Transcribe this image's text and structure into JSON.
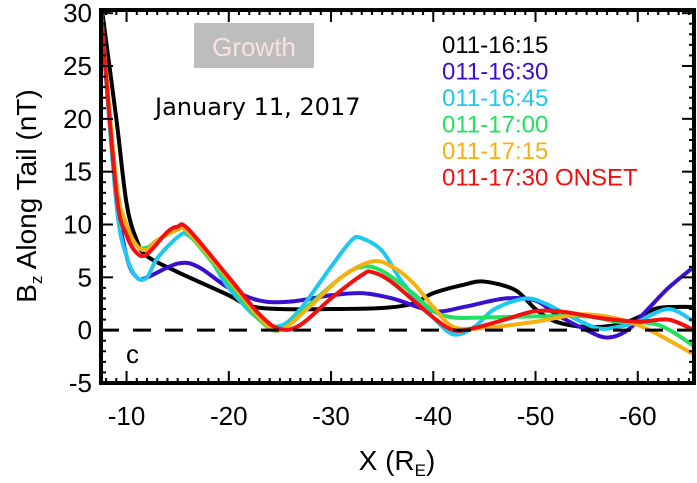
{
  "chart_data": {
    "type": "line",
    "title": "",
    "xlabel": {
      "main": "X (R",
      "sub": "E",
      "end": ")"
    },
    "ylabel": {
      "pre": "B",
      "sub": "z",
      "main": " Along Tail (nT)"
    },
    "xlim": [
      -7.5,
      -65.5
    ],
    "ylim": [
      -5,
      30.3
    ],
    "xticks": [
      -10,
      -20,
      -30,
      -40,
      -50,
      -60
    ],
    "yticks": [
      -5,
      0,
      5,
      10,
      15,
      20,
      25,
      30
    ],
    "reference_line": {
      "y": 0,
      "style": "dashed"
    },
    "annotations": {
      "phase": "Growth",
      "date": "January 11, 2017",
      "panel": "c"
    },
    "legend_placement": "top-right",
    "series": [
      {
        "name": "011-16:15",
        "color": "#000000",
        "x": [
          -7.5,
          -9,
          -10,
          -11,
          -12,
          -15,
          -20,
          -22,
          -25,
          -30,
          -35,
          -38,
          -40,
          -43,
          -45,
          -48,
          -50,
          -52,
          -55,
          -58,
          -60,
          -62,
          -65.5
        ],
        "y": [
          31,
          20,
          12,
          8.5,
          7,
          5.5,
          3.3,
          2.3,
          2,
          2,
          2.1,
          2.5,
          3.5,
          4.3,
          4.6,
          3.8,
          2,
          0.8,
          0.3,
          0.5,
          1.2,
          2.1,
          2.2
        ]
      },
      {
        "name": "011-16:30",
        "color": "#3a10d0",
        "x": [
          -7.5,
          -9,
          -10,
          -11,
          -12,
          -15,
          -17,
          -20,
          -23,
          -26,
          -30,
          -33,
          -36,
          -40,
          -43,
          -47,
          -50,
          -52,
          -55,
          -57,
          -59,
          -61,
          -63,
          -65.5
        ],
        "y": [
          30,
          13,
          7,
          5,
          5,
          6.3,
          6,
          4,
          2.8,
          2.7,
          3.3,
          3.5,
          3,
          1.8,
          2.2,
          3,
          2.8,
          1.5,
          0,
          -0.7,
          0,
          2,
          4,
          6
        ]
      },
      {
        "name": "011-16:45",
        "color": "#1ec8f0",
        "x": [
          -7.5,
          -9,
          -10,
          -11,
          -12,
          -13,
          -15,
          -16,
          -18,
          -20,
          -23,
          -25,
          -27,
          -30,
          -32,
          -33,
          -35,
          -37,
          -40,
          -42,
          -44,
          -46,
          -49,
          -51,
          -53,
          -56,
          -58,
          -60,
          -63,
          -65.5
        ],
        "y": [
          30,
          12,
          7,
          5,
          5,
          6.8,
          8.8,
          9,
          7,
          4,
          1,
          0.4,
          2,
          6,
          8.5,
          8.7,
          7.5,
          4.5,
          1.2,
          -0.4,
          0.3,
          2,
          3,
          2.5,
          1.5,
          0.2,
          0.3,
          0.8,
          2,
          0.8
        ]
      },
      {
        "name": "011-17:00",
        "color": "#22e060",
        "x": [
          -7.5,
          -9,
          -10,
          -11,
          -12,
          -13,
          -15,
          -16,
          -20,
          -23,
          -25,
          -28,
          -31,
          -33,
          -35,
          -38,
          -40,
          -42,
          -45,
          -50,
          -55,
          -58,
          -62,
          -65.5
        ],
        "y": [
          30,
          14,
          10,
          8,
          7.8,
          8.5,
          9.6,
          9.2,
          4.5,
          1,
          0,
          2.5,
          5,
          6,
          5.6,
          3.5,
          1.8,
          1.2,
          1.2,
          1.3,
          1.3,
          0.8,
          0.5,
          -1.5
        ]
      },
      {
        "name": "011-17:15",
        "color": "#f8b010",
        "x": [
          -7.5,
          -9,
          -10,
          -11,
          -12,
          -13,
          -15,
          -16,
          -20,
          -23,
          -25,
          -28,
          -31,
          -34,
          -36,
          -38,
          -40,
          -42,
          -45,
          -50,
          -55,
          -60,
          -65.5
        ],
        "y": [
          30,
          14,
          10,
          8,
          7.6,
          8.5,
          9.5,
          9.3,
          4.8,
          1.2,
          0,
          2.3,
          5,
          6.5,
          6,
          4.5,
          2.2,
          0.3,
          0.2,
          0.8,
          1.5,
          0.5,
          -2.3
        ]
      },
      {
        "name": "011-17:30 ONSET",
        "color": "#f01010",
        "x": [
          -7.5,
          -9,
          -10,
          -11,
          -12,
          -14,
          -15,
          -16,
          -20,
          -23,
          -25,
          -27,
          -30,
          -33,
          -34,
          -36,
          -40,
          -42,
          -44,
          -47,
          -50,
          -53,
          -56,
          -60,
          -63,
          -65.5
        ],
        "y": [
          30,
          13,
          9,
          7.3,
          7.2,
          9.3,
          9.8,
          9.6,
          5,
          1.5,
          0.1,
          0.5,
          3,
          5.2,
          5.5,
          4.5,
          1.2,
          0,
          0.2,
          1,
          1.8,
          1.7,
          1.2,
          0.8,
          1,
          0
        ]
      }
    ]
  }
}
